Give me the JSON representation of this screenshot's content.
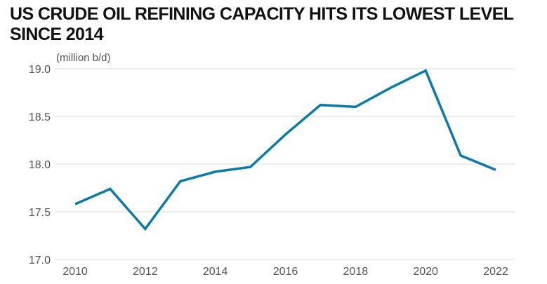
{
  "title_lines": [
    "US CRUDE OIL REFINING CAPACITY HITS ITS LOWEST LEVEL",
    "SINCE 2014"
  ],
  "colors": {
    "line": "#0a7aa6",
    "grid": "#d9d9d9",
    "text": "#555555",
    "title": "#111111"
  },
  "chart_data": {
    "type": "line",
    "title": "US CRUDE OIL REFINING CAPACITY HITS ITS LOWEST LEVEL SINCE 2014",
    "unit_label": "(million b/d)",
    "x": [
      2010,
      2011,
      2012,
      2013,
      2014,
      2015,
      2016,
      2017,
      2018,
      2019,
      2020,
      2021,
      2022
    ],
    "series": [
      {
        "values": [
          17.58,
          17.74,
          17.32,
          17.82,
          17.92,
          17.97,
          18.31,
          18.62,
          18.6,
          18.8,
          18.98,
          18.09,
          17.94
        ]
      }
    ],
    "xticks": [
      "2010",
      "2012",
      "2014",
      "2016",
      "2018",
      "2020",
      "2022"
    ],
    "yticks": [
      "17.0",
      "17.5",
      "18.0",
      "18.5",
      "19.0"
    ],
    "ylim": [
      17.0,
      19.0
    ],
    "xlim": [
      2010,
      2022
    ],
    "grid": "horizontal",
    "legend": "none"
  }
}
